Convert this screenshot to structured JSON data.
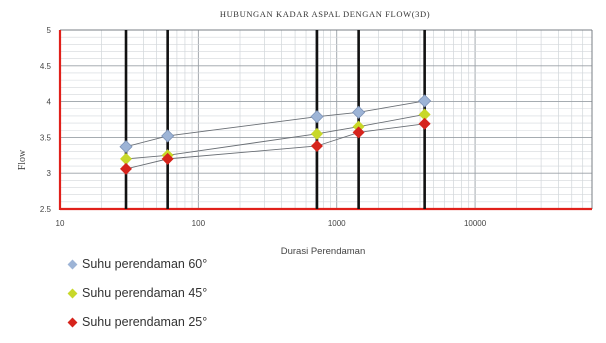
{
  "chart_data": {
    "type": "scatter",
    "title": "HUBUNGAN KADAR ASPAL DENGAN FLOW(3D)",
    "xlabel": "Durasi Perendaman",
    "ylabel": "Flow",
    "xscale": "log",
    "xlim": [
      10,
      70000
    ],
    "ylim": [
      2.5,
      5
    ],
    "xticks": [
      10,
      100,
      1000,
      10000
    ],
    "xtick_labels": [
      "10",
      "100",
      "1000",
      "10000"
    ],
    "yticks": [
      2.5,
      3,
      3.5,
      4,
      4.5,
      5
    ],
    "ytick_labels": [
      "2.5",
      "3",
      "3.5",
      "4",
      "4.5",
      "5"
    ],
    "grid": true,
    "legend_position": "bottom-left",
    "x": [
      30,
      60,
      720,
      1440,
      4320
    ],
    "series": [
      {
        "name": "Suhu perendaman 60°",
        "color": "#9db4d6",
        "values": [
          3.37,
          3.52,
          3.79,
          3.85,
          4.01
        ]
      },
      {
        "name": "Suhu perendaman 45°",
        "color": "#c8d82a",
        "values": [
          3.2,
          3.25,
          3.55,
          3.65,
          3.82
        ]
      },
      {
        "name": "Suhu perendaman 25°",
        "color": "#d6241c",
        "values": [
          3.06,
          3.2,
          3.38,
          3.57,
          3.69
        ]
      }
    ]
  }
}
